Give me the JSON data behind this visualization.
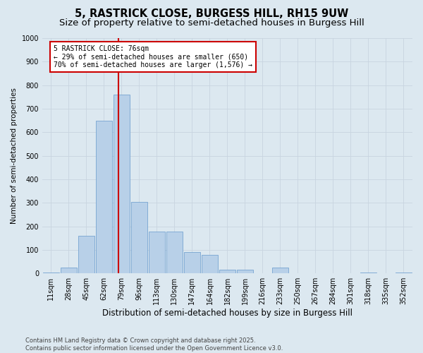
{
  "title": "5, RASTRICK CLOSE, BURGESS HILL, RH15 9UW",
  "subtitle": "Size of property relative to semi-detached houses in Burgess Hill",
  "xlabel": "Distribution of semi-detached houses by size in Burgess Hill",
  "ylabel": "Number of semi-detached properties",
  "categories": [
    "11sqm",
    "28sqm",
    "45sqm",
    "62sqm",
    "79sqm",
    "96sqm",
    "113sqm",
    "130sqm",
    "147sqm",
    "164sqm",
    "182sqm",
    "199sqm",
    "216sqm",
    "233sqm",
    "250sqm",
    "267sqm",
    "284sqm",
    "301sqm",
    "318sqm",
    "335sqm",
    "352sqm"
  ],
  "values": [
    5,
    25,
    160,
    650,
    760,
    305,
    178,
    178,
    90,
    80,
    15,
    15,
    0,
    25,
    0,
    0,
    0,
    0,
    5,
    0,
    5
  ],
  "bar_color": "#b8d0e8",
  "bar_edgecolor": "#6699cc",
  "grid_color": "#c8d4e0",
  "bg_color": "#dce8f0",
  "plot_bg_color": "#dce8f0",
  "annotation_text": "5 RASTRICK CLOSE: 76sqm\n← 29% of semi-detached houses are smaller (650)\n70% of semi-detached houses are larger (1,576) →",
  "annotation_box_color": "#ffffff",
  "annotation_box_edgecolor": "#cc0000",
  "property_line_color": "#cc0000",
  "footer": "Contains HM Land Registry data © Crown copyright and database right 2025.\nContains public sector information licensed under the Open Government Licence v3.0.",
  "ylim": [
    0,
    1000
  ],
  "yticks": [
    0,
    100,
    200,
    300,
    400,
    500,
    600,
    700,
    800,
    900,
    1000
  ],
  "title_fontsize": 10.5,
  "subtitle_fontsize": 9.5,
  "xlabel_fontsize": 8.5,
  "ylabel_fontsize": 7.5,
  "tick_fontsize": 7,
  "annotation_fontsize": 7,
  "footer_fontsize": 6
}
